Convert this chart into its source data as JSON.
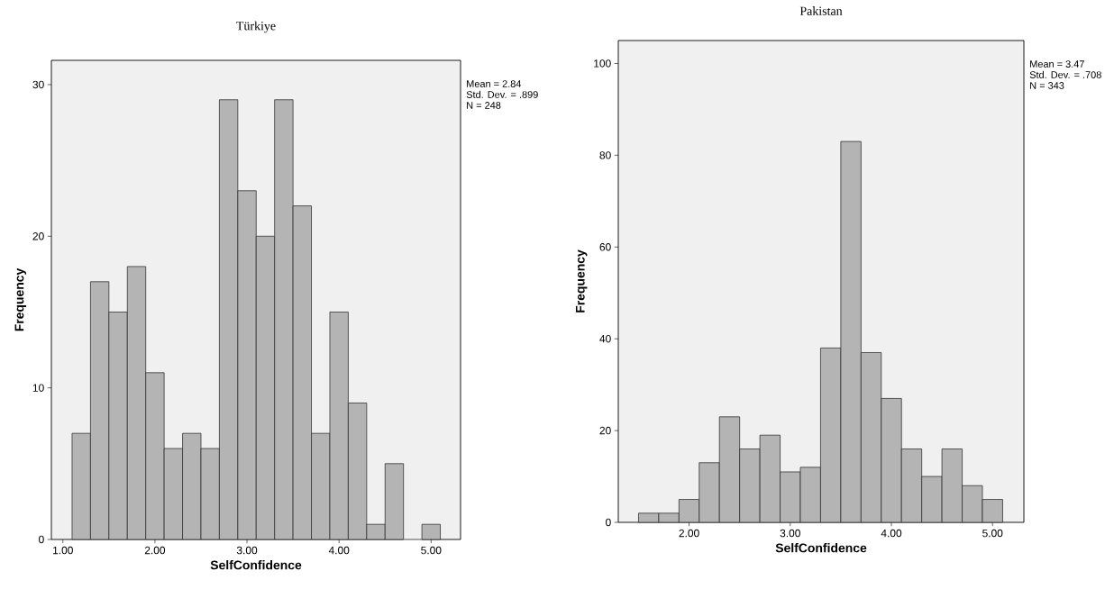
{
  "chart_data": [
    {
      "type": "histogram",
      "title": "Türkiye",
      "xlabel": "SelfConfidence",
      "ylabel": "Frequency",
      "color": "#b4b4b4",
      "bins": [
        1.1,
        1.3,
        1.5,
        1.7,
        1.9,
        2.1,
        2.3,
        2.5,
        2.7,
        2.9,
        3.1,
        3.3,
        3.5,
        3.7,
        3.9,
        4.1,
        4.3,
        4.5,
        4.7,
        4.9,
        5.1
      ],
      "values": [
        7,
        17,
        15,
        18,
        11,
        6,
        7,
        6,
        29,
        23,
        20,
        29,
        22,
        7,
        15,
        9,
        1,
        5,
        0,
        1
      ],
      "xlim": [
        0.875,
        5.32
      ],
      "ylim": [
        0,
        31.6
      ],
      "xticks": [
        {
          "value": 1,
          "label": "1.00"
        },
        {
          "value": 2,
          "label": "2.00"
        },
        {
          "value": 3,
          "label": "3.00"
        },
        {
          "value": 4,
          "label": "4.00"
        },
        {
          "value": 5,
          "label": "5.00"
        }
      ],
      "yticks": [
        0,
        10,
        20,
        30
      ],
      "annotations": [
        "Mean = 2.84",
        "Std. Dev. = .899",
        "N = 248"
      ]
    },
    {
      "type": "histogram",
      "title": "Pakistan",
      "xlabel": "SelfConfidence",
      "ylabel": "Frequency",
      "color": "#b4b4b4",
      "bins": [
        1.5,
        1.7,
        1.9,
        2.1,
        2.3,
        2.5,
        2.7,
        2.9,
        3.1,
        3.3,
        3.5,
        3.7,
        3.9,
        4.1,
        4.3,
        4.5,
        4.7,
        4.9,
        5.1
      ],
      "values": [
        2,
        2,
        5,
        13,
        23,
        16,
        19,
        11,
        12,
        38,
        83,
        37,
        27,
        16,
        10,
        16,
        8,
        5
      ],
      "xlim": [
        1.3,
        5.31
      ],
      "ylim": [
        0,
        105
      ],
      "xticks": [
        {
          "value": 2,
          "label": "2.00"
        },
        {
          "value": 3,
          "label": "3.00"
        },
        {
          "value": 4,
          "label": "4.00"
        },
        {
          "value": 5,
          "label": "5.00"
        }
      ],
      "yticks": [
        0,
        20,
        40,
        60,
        80,
        100
      ],
      "annotations": [
        "Mean = 3.47",
        "Std. Dev. = .708",
        "N = 343"
      ]
    }
  ]
}
